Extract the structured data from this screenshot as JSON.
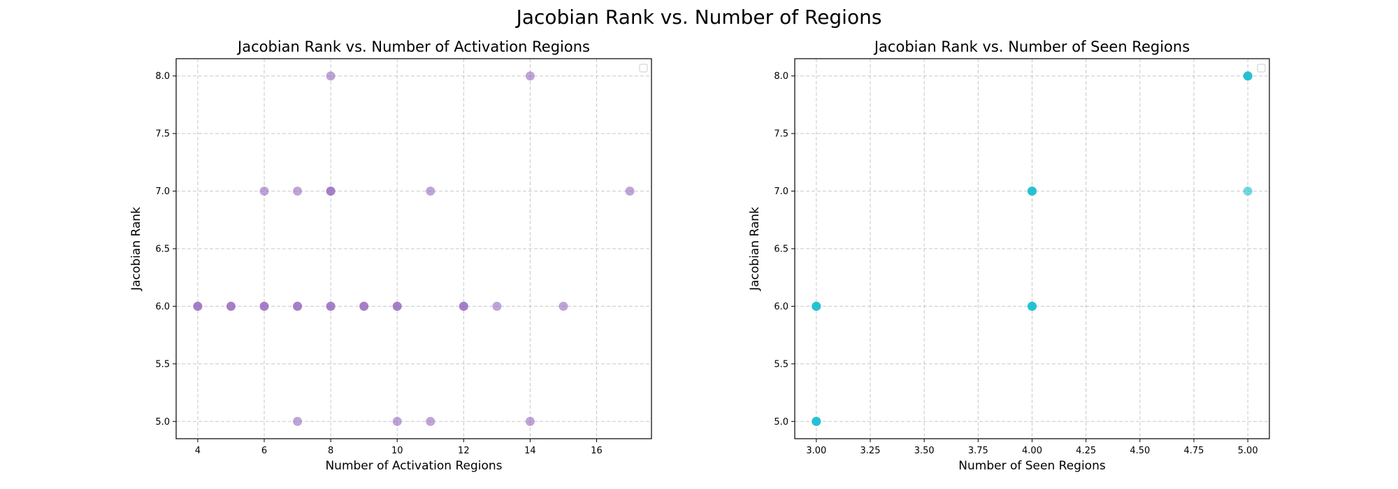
{
  "figure": {
    "title": "Jacobian Rank vs. Number of Regions"
  },
  "chart_data": [
    {
      "type": "scatter",
      "title": "Jacobian Rank vs. Number of Activation Regions",
      "xlabel": "Number of Activation Regions",
      "ylabel": "Jacobian Rank",
      "xlim": [
        3.35,
        17.65
      ],
      "ylim": [
        4.85,
        8.15
      ],
      "xticks": [
        4,
        6,
        8,
        10,
        12,
        14,
        16
      ],
      "xtick_labels": [
        "4",
        "6",
        "8",
        "10",
        "12",
        "14",
        "16"
      ],
      "yticks": [
        5.0,
        5.5,
        6.0,
        6.5,
        7.0,
        7.5,
        8.0
      ],
      "ytick_labels": [
        "5.0",
        "5.5",
        "6.0",
        "6.5",
        "7.0",
        "7.5",
        "8.0"
      ],
      "grid": true,
      "legend": "top-right (empty)",
      "color": "#9467bd",
      "points": [
        {
          "x": 4,
          "y": 6
        },
        {
          "x": 4,
          "y": 6
        },
        {
          "x": 5,
          "y": 6
        },
        {
          "x": 5,
          "y": 6
        },
        {
          "x": 6,
          "y": 6
        },
        {
          "x": 6,
          "y": 6
        },
        {
          "x": 6,
          "y": 7
        },
        {
          "x": 7,
          "y": 6
        },
        {
          "x": 7,
          "y": 6
        },
        {
          "x": 7,
          "y": 7
        },
        {
          "x": 7,
          "y": 5
        },
        {
          "x": 8,
          "y": 6
        },
        {
          "x": 8,
          "y": 6
        },
        {
          "x": 8,
          "y": 7
        },
        {
          "x": 8,
          "y": 7
        },
        {
          "x": 8,
          "y": 8
        },
        {
          "x": 9,
          "y": 6
        },
        {
          "x": 9,
          "y": 6
        },
        {
          "x": 10,
          "y": 6
        },
        {
          "x": 10,
          "y": 6
        },
        {
          "x": 10,
          "y": 5
        },
        {
          "x": 11,
          "y": 7
        },
        {
          "x": 11,
          "y": 5
        },
        {
          "x": 12,
          "y": 6
        },
        {
          "x": 12,
          "y": 6
        },
        {
          "x": 13,
          "y": 6
        },
        {
          "x": 14,
          "y": 8
        },
        {
          "x": 14,
          "y": 5
        },
        {
          "x": 15,
          "y": 6
        },
        {
          "x": 17,
          "y": 7
        }
      ]
    },
    {
      "type": "scatter",
      "title": "Jacobian Rank vs. Number of Seen Regions",
      "xlabel": "Number of Seen Regions",
      "ylabel": "Jacobian Rank",
      "xlim": [
        2.9,
        5.1
      ],
      "ylim": [
        4.85,
        8.15
      ],
      "xticks": [
        3.0,
        3.25,
        3.5,
        3.75,
        4.0,
        4.25,
        4.5,
        4.75,
        5.0
      ],
      "xtick_labels": [
        "3.00",
        "3.25",
        "3.50",
        "3.75",
        "4.00",
        "4.25",
        "4.50",
        "4.75",
        "5.00"
      ],
      "yticks": [
        5.0,
        5.5,
        6.0,
        6.5,
        7.0,
        7.5,
        8.0
      ],
      "ytick_labels": [
        "5.0",
        "5.5",
        "6.0",
        "6.5",
        "7.0",
        "7.5",
        "8.0"
      ],
      "grid": true,
      "legend": "top-right (empty)",
      "color": "#17becf",
      "points": [
        {
          "x": 3,
          "y": 6
        },
        {
          "x": 3,
          "y": 6
        },
        {
          "x": 3,
          "y": 6
        },
        {
          "x": 3,
          "y": 5
        },
        {
          "x": 3,
          "y": 5
        },
        {
          "x": 3,
          "y": 5
        },
        {
          "x": 4,
          "y": 7
        },
        {
          "x": 4,
          "y": 7
        },
        {
          "x": 4,
          "y": 7
        },
        {
          "x": 4,
          "y": 6
        },
        {
          "x": 4,
          "y": 6
        },
        {
          "x": 4,
          "y": 6
        },
        {
          "x": 5,
          "y": 8
        },
        {
          "x": 5,
          "y": 8
        },
        {
          "x": 5,
          "y": 8
        },
        {
          "x": 5,
          "y": 7
        }
      ]
    }
  ]
}
